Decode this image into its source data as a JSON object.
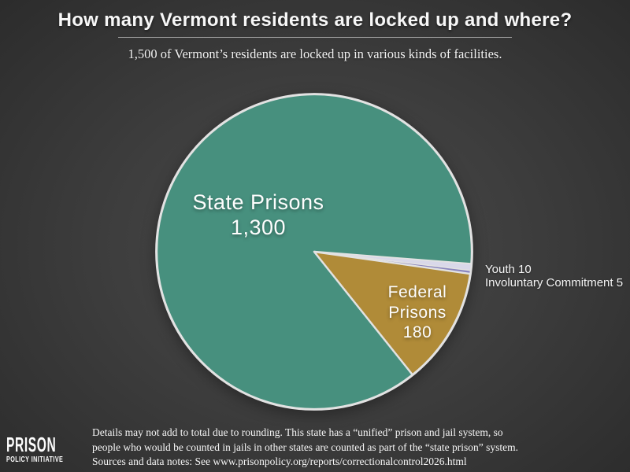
{
  "chart_data": {
    "type": "pie",
    "title": "How many Vermont residents are locked up and where?",
    "subtitle": "1,500 of Vermont’s residents are locked up in various kinds of facilities.",
    "total": 1500,
    "legend_position": "labels-on-chart",
    "start_angle_deg": 51.4,
    "stroke_color": "#e2e2e2",
    "slices": [
      {
        "name": "State Prisons",
        "value": 1300,
        "color": "#47907e",
        "label_lines": [
          "State Prisons",
          "1,300"
        ],
        "label_position": "inside"
      },
      {
        "name": "Youth",
        "value": 10,
        "color": "#d9d8e9",
        "label_lines": [
          "Youth 10"
        ],
        "label_position": "outside-right"
      },
      {
        "name": "Involuntary Commitment",
        "value": 5,
        "color": "#8a85be",
        "label_lines": [
          "Involuntary Commitment 5"
        ],
        "label_position": "outside-right"
      },
      {
        "name": "Federal Prisons",
        "value": 180,
        "color": "#b08b38",
        "label_lines": [
          "Federal",
          "Prisons",
          "180"
        ],
        "label_position": "inside"
      }
    ]
  },
  "footer": {
    "lines": [
      "Details may not add to total due to rounding. This state has a “unified” prison and jail system, so",
      "people who would be counted in jails in other states are counted as part of the “state prison” system.",
      "Sources and data notes: See www.prisonpolicy.org/reports/correctionalcontrol2026.html"
    ]
  },
  "logo": {
    "line1": "PRISON",
    "line2": "POLICY INITIATIVE"
  }
}
